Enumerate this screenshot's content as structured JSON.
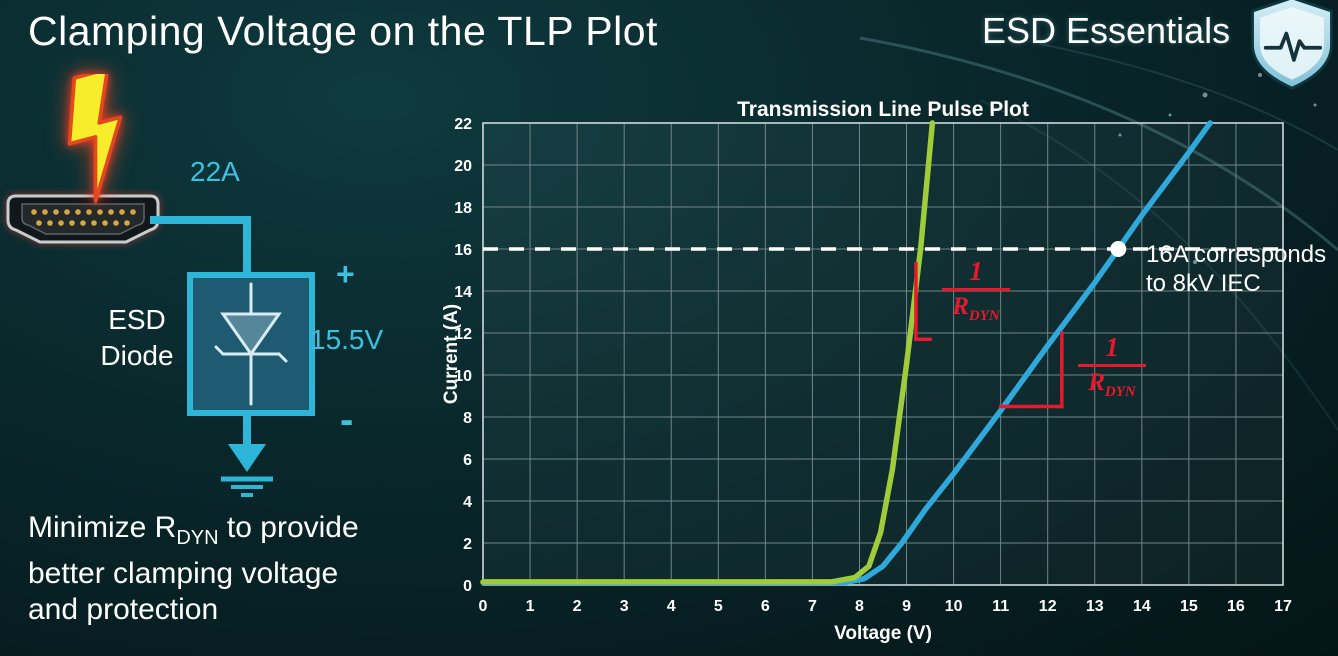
{
  "slide": {
    "title": "Clamping Voltage on the TLP Plot",
    "brand": "ESD Essentials"
  },
  "diagram": {
    "surge_current_label": "22A",
    "component_name_line1": "ESD",
    "component_name_line2": "Diode",
    "polarity_plus": "+",
    "polarity_minus": "-",
    "clamping_voltage_label": "15.5V"
  },
  "note": {
    "line1_prefix": "Minimize R",
    "line1_sub": "DYN",
    "line1_suffix": " to provide",
    "line2": "better clamping voltage",
    "line3": "and protection"
  },
  "chart_data": {
    "type": "line",
    "title": "Transmission Line Pulse Plot",
    "xlabel": "Voltage (V)",
    "ylabel": "Current (A)",
    "xlim": [
      0,
      17
    ],
    "ylim": [
      0,
      22
    ],
    "x_ticks": [
      0,
      1,
      2,
      3,
      4,
      5,
      6,
      7,
      8,
      9,
      10,
      11,
      12,
      13,
      14,
      15,
      16,
      17
    ],
    "y_ticks": [
      0,
      2,
      4,
      6,
      8,
      10,
      12,
      14,
      16,
      18,
      20,
      22
    ],
    "grid": true,
    "legend": "none",
    "series": [
      {
        "id": "blue-curve",
        "color": "#2fa8dc",
        "points": [
          [
            0,
            0.12
          ],
          [
            7.7,
            0.12
          ],
          [
            8.1,
            0.3
          ],
          [
            8.5,
            0.9
          ],
          [
            8.9,
            2.0
          ],
          [
            9.4,
            3.6
          ],
          [
            10,
            5.3
          ],
          [
            11,
            8.3
          ],
          [
            12,
            11.4
          ],
          [
            13,
            14.4
          ],
          [
            13.5,
            16
          ],
          [
            14,
            17.6
          ],
          [
            15,
            20.6
          ],
          [
            15.45,
            22
          ]
        ]
      },
      {
        "id": "green-curve",
        "color": "#9fcc3b",
        "points": [
          [
            0,
            0.15
          ],
          [
            7.4,
            0.15
          ],
          [
            7.9,
            0.35
          ],
          [
            8.2,
            0.9
          ],
          [
            8.45,
            2.5
          ],
          [
            8.7,
            5.5
          ],
          [
            9.0,
            10.5
          ],
          [
            9.3,
            16
          ],
          [
            9.55,
            22
          ]
        ]
      }
    ],
    "reference_line": {
      "y": 16,
      "color": "#ffffff",
      "style": "dashed"
    },
    "marker": {
      "x": 13.5,
      "y": 16,
      "label_line1": "16A corresponds",
      "label_line2": "to 8kV IEC"
    },
    "annotation_color": "#e8192c",
    "slope_markers": [
      {
        "at": "green-curve",
        "lines": [
          [
            9.2,
            15.3,
            9.2,
            11.7
          ],
          [
            9.2,
            11.7,
            9.5,
            11.7
          ]
        ]
      },
      {
        "at": "blue-curve",
        "lines": [
          [
            12.3,
            12.0,
            12.3,
            8.5
          ],
          [
            11.0,
            8.5,
            12.3,
            8.5
          ]
        ]
      }
    ],
    "fraction_label": {
      "numerator": "1",
      "denominator": "R",
      "denominator_sub": "DYN"
    }
  }
}
